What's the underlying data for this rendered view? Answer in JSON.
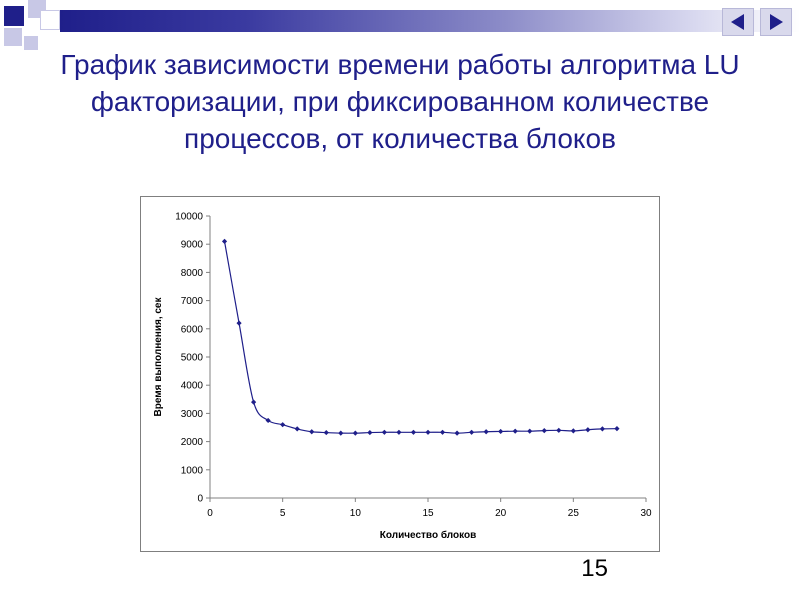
{
  "slide": {
    "title": "График зависимости времени работы алгоритма LU факторизации, при фиксированном количестве процессов, от количества блоков",
    "page_number": "15",
    "accent_color": "#1f1f8a",
    "nav_prev_icon": "triangle-left-icon",
    "nav_next_icon": "triangle-right-icon"
  },
  "chart_data": {
    "type": "line",
    "title": "",
    "xlabel": "Количество блоков",
    "ylabel": "Время выполнения, сек",
    "xlim": [
      0,
      30
    ],
    "ylim": [
      0,
      10000
    ],
    "x_ticks": [
      0,
      5,
      10,
      15,
      20,
      25,
      30
    ],
    "y_ticks": [
      0,
      1000,
      2000,
      3000,
      4000,
      5000,
      6000,
      7000,
      8000,
      9000,
      10000
    ],
    "grid": false,
    "legend": "none",
    "series": [
      {
        "color": "#1f1f8a",
        "x": [
          1,
          2,
          3,
          4,
          5,
          6,
          7,
          8,
          9,
          10,
          11,
          12,
          13,
          14,
          15,
          16,
          17,
          18,
          19,
          20,
          21,
          22,
          23,
          24,
          25,
          26,
          27,
          28
        ],
        "y": [
          9100,
          6200,
          3400,
          2750,
          2600,
          2450,
          2350,
          2320,
          2300,
          2300,
          2320,
          2330,
          2330,
          2330,
          2330,
          2330,
          2300,
          2330,
          2350,
          2360,
          2370,
          2370,
          2390,
          2400,
          2380,
          2420,
          2450,
          2460
        ]
      }
    ]
  }
}
